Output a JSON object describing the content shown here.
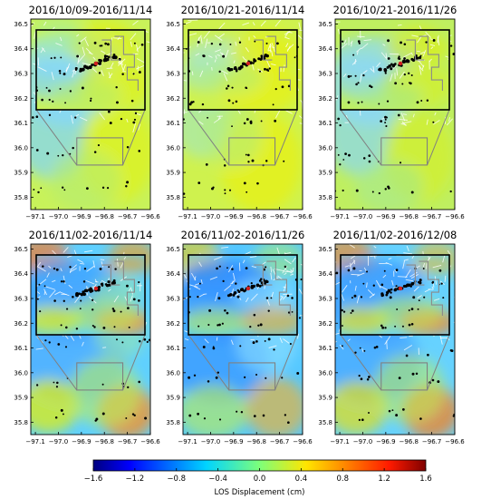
{
  "chart_data": {
    "type": "heatmap",
    "panels": [
      {
        "title": "2016/10/09-2016/11/14",
        "scene": 0
      },
      {
        "title": "2016/10/21-2016/11/14",
        "scene": 1
      },
      {
        "title": "2016/10/21-2016/11/26",
        "scene": 2
      },
      {
        "title": "2016/11/02-2016/11/14",
        "scene": 3
      },
      {
        "title": "2016/11/02-2016/11/26",
        "scene": 4
      },
      {
        "title": "2016/11/02-2016/12/08",
        "scene": 5
      }
    ],
    "x_ticks": [
      "−97.1",
      "−97.0",
      "−96.9",
      "−96.8",
      "−96.7",
      "−96.6"
    ],
    "x_tick_values": [
      -97.1,
      -97.0,
      -96.9,
      -96.8,
      -96.7,
      -96.6
    ],
    "y_ticks": [
      "35.8",
      "35.9",
      "36.0",
      "36.1",
      "36.2",
      "36.3",
      "36.4",
      "36.5"
    ],
    "y_tick_values": [
      35.8,
      35.9,
      36.0,
      36.1,
      36.2,
      36.3,
      36.4,
      36.5
    ],
    "xlim": [
      -97.12,
      -96.6
    ],
    "ylim": [
      35.75,
      36.52
    ],
    "inset_source_region": {
      "lon": [
        -96.92,
        -96.72
      ],
      "lat": [
        35.93,
        36.04
      ]
    },
    "colorbar": {
      "label": "LOS Displacement (cm)",
      "range": [
        -1.6,
        1.6
      ],
      "ticks": [
        "−1.6",
        "−1.2",
        "−0.8",
        "−0.4",
        "0.0",
        "0.4",
        "0.8",
        "1.2",
        "1.6"
      ],
      "tick_values": [
        -1.6,
        -1.2,
        -0.8,
        -0.4,
        0.0,
        0.4,
        0.8,
        1.2,
        1.6
      ],
      "colormap": "jet"
    }
  }
}
